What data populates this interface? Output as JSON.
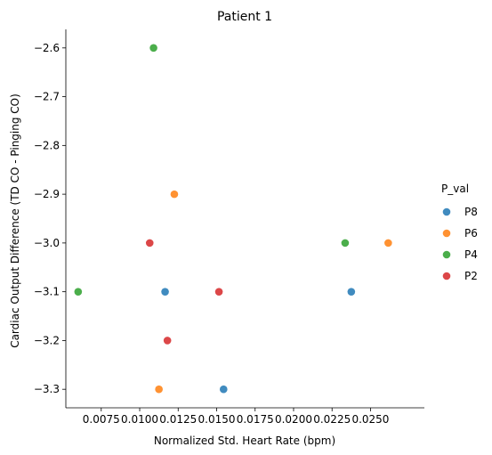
{
  "chart_data": {
    "type": "scatter",
    "title": "Patient 1",
    "xlabel": "Normalized Std. Heart Rate (bpm)",
    "ylabel": "Cardiac Output Difference (TD CO - Pinging CO)",
    "xlim": [
      0.0052,
      0.0285
    ],
    "ylim": [
      -3.338,
      -2.562
    ],
    "xticks": [
      0.0075,
      0.01,
      0.0125,
      0.015,
      0.0175,
      0.02,
      0.0225,
      0.025
    ],
    "xtick_labels": [
      "0.0075",
      "0.0100",
      "0.0125",
      "0.0150",
      "0.0175",
      "0.0200",
      "0.0225",
      "0.0250"
    ],
    "yticks": [
      -2.6,
      -2.7,
      -2.8,
      -2.9,
      -3.0,
      -3.1,
      -3.2,
      -3.3
    ],
    "ytick_labels": [
      "−2.6",
      "−2.7",
      "−2.8",
      "−2.9",
      "−3.0",
      "−3.1",
      "−3.2",
      "−3.3"
    ],
    "grid": false,
    "legend": {
      "title": "P_val",
      "placement": "right"
    },
    "series": [
      {
        "name": "P8",
        "color": "#1f77b4",
        "points": [
          [
            0.01165,
            -3.1
          ],
          [
            0.01545,
            -3.3
          ],
          [
            0.02375,
            -3.1
          ]
        ]
      },
      {
        "name": "P6",
        "color": "#ff7f0e",
        "points": [
          [
            0.01225,
            -2.9
          ],
          [
            0.01125,
            -3.3
          ],
          [
            0.02615,
            -3.0
          ]
        ]
      },
      {
        "name": "P4",
        "color": "#2ca02c",
        "points": [
          [
            0.0109,
            -2.6
          ],
          [
            0.006,
            -3.1
          ],
          [
            0.02335,
            -3.0
          ]
        ]
      },
      {
        "name": "P2",
        "color": "#d62728",
        "points": [
          [
            0.01065,
            -3.0
          ],
          [
            0.01515,
            -3.1
          ],
          [
            0.0118,
            -3.2
          ]
        ]
      }
    ]
  }
}
